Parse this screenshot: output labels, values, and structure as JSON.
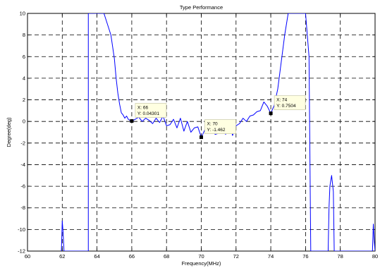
{
  "chart_data": {
    "type": "line",
    "title": "Type Performance",
    "xlabel": "Frequency(MHz)",
    "ylabel": "Degree(deg)",
    "xlim": [
      60,
      80
    ],
    "ylim": [
      -12,
      10
    ],
    "xticks": [
      "60",
      "62",
      "64",
      "66",
      "68",
      "70",
      "72",
      "74",
      "76",
      "78",
      "80"
    ],
    "yticks": [
      "10",
      "8",
      "6",
      "4",
      "2",
      "0",
      "-2",
      "-4",
      "-6",
      "-8",
      "-10",
      "-12"
    ],
    "grid": true,
    "grid_style": "dashed",
    "line_color": "#0000ff",
    "series": [
      {
        "x": [
          61.95,
          62.0,
          62.05,
          62.1,
          63.5,
          63.5,
          63.55,
          63.65,
          64.0,
          64.4,
          64.8,
          65.0,
          65.1,
          65.2,
          65.3,
          65.4,
          65.5,
          65.6,
          65.7,
          65.8,
          65.9,
          66.0,
          66.2,
          66.4,
          66.6,
          66.8,
          67.0,
          67.2,
          67.4,
          67.6,
          67.8,
          68.0,
          68.2,
          68.4,
          68.6,
          68.8,
          69.0,
          69.2,
          69.4,
          69.6,
          69.8,
          70.0,
          70.2,
          70.4,
          70.6,
          70.8,
          71.0,
          71.2,
          71.4,
          71.6,
          71.8,
          72.0,
          72.2,
          72.4,
          72.6,
          72.8,
          73.0,
          73.2,
          73.4,
          73.6,
          73.8,
          74.0,
          74.2,
          74.4,
          74.6,
          74.8,
          75.0,
          75.2,
          75.4,
          75.6,
          75.8,
          76.0,
          76.2,
          76.3,
          76.3,
          77.3,
          77.35,
          77.4,
          77.5,
          77.6,
          77.65,
          79.85,
          79.9,
          79.95,
          80.0
        ],
        "y": [
          -12,
          -9.2,
          -10.3,
          -12,
          -12,
          10,
          10,
          10,
          10,
          10,
          8.0,
          5.8,
          4.0,
          2.6,
          1.6,
          0.8,
          0.6,
          0.3,
          0.5,
          0.2,
          0.1,
          0.043,
          0.2,
          0.4,
          0.0,
          0.3,
          0.1,
          -0.2,
          0.3,
          -0.1,
          0.5,
          -0.4,
          -0.3,
          0.2,
          -0.6,
          0.3,
          -0.9,
          0.0,
          -1.0,
          -0.6,
          -0.5,
          -1.462,
          -0.8,
          -1.0,
          -0.8,
          -1.2,
          -1.1,
          -0.3,
          -1.2,
          0.0,
          -1.3,
          -0.4,
          -0.2,
          0.3,
          0.0,
          0.5,
          0.6,
          0.9,
          1.0,
          1.8,
          1.4,
          0.75,
          1.5,
          3.0,
          5.5,
          8.0,
          10,
          10,
          10,
          10,
          10,
          10,
          6.0,
          -12,
          -12,
          -12,
          -8.0,
          -6.0,
          -5.0,
          -6.5,
          -12,
          -12,
          -9.5,
          -11.0,
          -12
        ]
      }
    ],
    "datatips": [
      {
        "x": 66,
        "y": 0.04301,
        "label_x": "X: 66",
        "label_y": "Y: 0.04301",
        "placement": "upper-right"
      },
      {
        "x": 70,
        "y": -1.462,
        "label_x": "X: 70",
        "label_y": "Y: -1.462",
        "placement": "upper-right"
      },
      {
        "x": 74,
        "y": 0.7504,
        "label_x": "X: 74",
        "label_y": "Y: 0.7504",
        "placement": "upper-right"
      }
    ]
  }
}
